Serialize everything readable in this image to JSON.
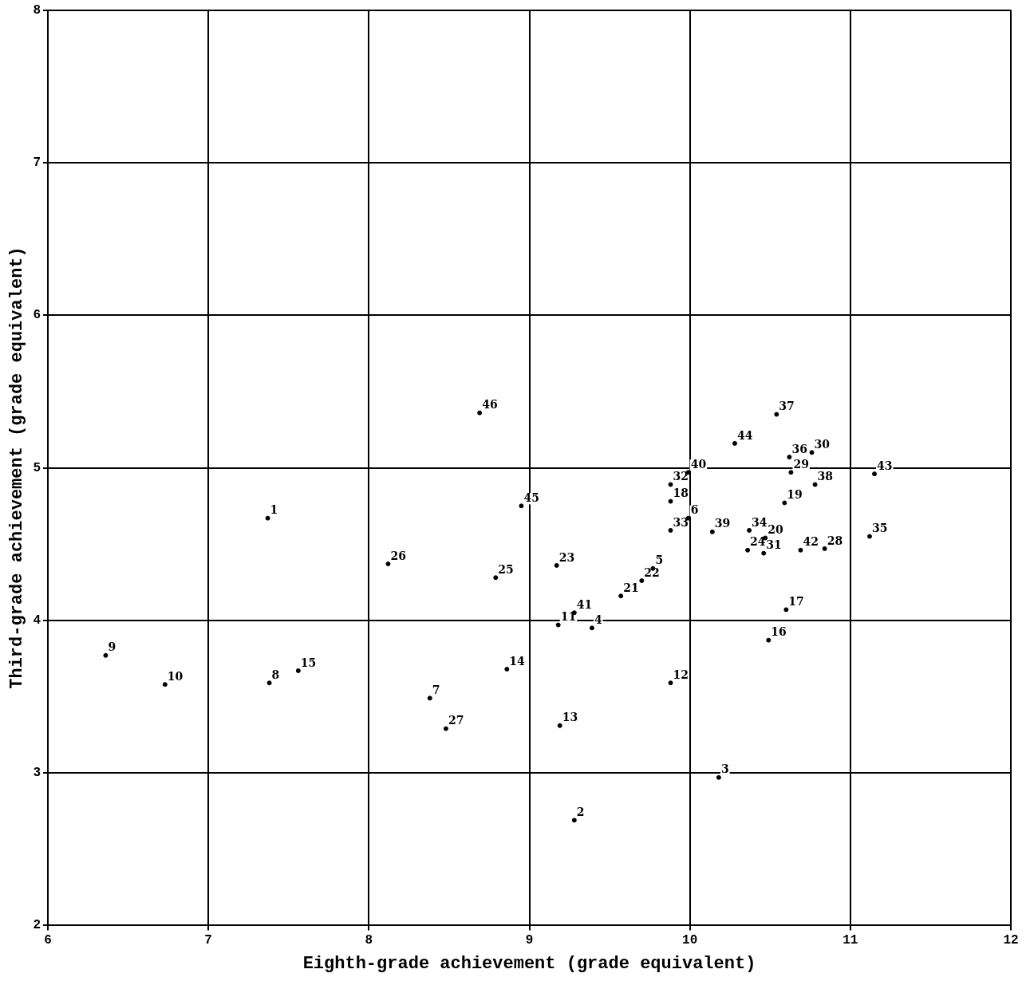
{
  "chart_data": {
    "type": "scatter",
    "xlabel": "Eighth-grade achievement (grade equivalent)",
    "ylabel": "Third-grade achievement (grade equivalent)",
    "xlim": [
      6,
      12
    ],
    "ylim": [
      2,
      8
    ],
    "xticks": [
      6,
      7,
      8,
      9,
      10,
      11,
      12
    ],
    "yticks": [
      2,
      3,
      4,
      5,
      6,
      7,
      8
    ],
    "grid": true,
    "legend": false,
    "marker": "circle",
    "series": [
      {
        "color": "#000000",
        "x": [
          7.37,
          9.28,
          10.18,
          9.39,
          9.77,
          9.99,
          8.38,
          7.38,
          6.36,
          6.73,
          9.18,
          9.88,
          9.19,
          8.86,
          7.56,
          10.49,
          10.6,
          9.88,
          10.59,
          10.47,
          9.57,
          9.7,
          9.17,
          10.36,
          8.79,
          8.12,
          8.48,
          10.84,
          10.63,
          10.76,
          10.46,
          9.88,
          9.88,
          10.37,
          11.12,
          10.62,
          10.54,
          10.78,
          10.14,
          9.99,
          9.28,
          10.69,
          11.15,
          10.28,
          8.95,
          8.69
        ],
        "values": [
          4.67,
          2.69,
          2.97,
          3.95,
          4.34,
          4.67,
          3.49,
          3.59,
          3.77,
          3.58,
          3.97,
          3.59,
          3.31,
          3.68,
          3.67,
          3.87,
          4.07,
          4.78,
          4.77,
          4.54,
          4.16,
          4.26,
          4.36,
          4.46,
          4.28,
          4.37,
          3.29,
          4.47,
          4.97,
          5.1,
          4.44,
          4.89,
          4.59,
          4.59,
          4.55,
          5.07,
          5.35,
          4.89,
          4.58,
          4.97,
          4.05,
          4.46,
          4.96,
          5.16,
          4.75,
          5.36
        ]
      }
    ],
    "annotations": [
      {
        "text": "1",
        "x": 7.37,
        "y": 4.67
      },
      {
        "text": "2",
        "x": 9.28,
        "y": 2.69
      },
      {
        "text": "3",
        "x": 10.18,
        "y": 2.97
      },
      {
        "text": "4",
        "x": 9.39,
        "y": 3.95
      },
      {
        "text": "5",
        "x": 9.77,
        "y": 4.34
      },
      {
        "text": "6",
        "x": 9.99,
        "y": 4.67
      },
      {
        "text": "7",
        "x": 8.38,
        "y": 3.49
      },
      {
        "text": "8",
        "x": 7.38,
        "y": 3.59
      },
      {
        "text": "9",
        "x": 6.36,
        "y": 3.77
      },
      {
        "text": "10",
        "x": 6.73,
        "y": 3.58
      },
      {
        "text": "11",
        "x": 9.18,
        "y": 3.97
      },
      {
        "text": "12",
        "x": 9.88,
        "y": 3.59
      },
      {
        "text": "13",
        "x": 9.19,
        "y": 3.31
      },
      {
        "text": "14",
        "x": 8.86,
        "y": 3.68
      },
      {
        "text": "15",
        "x": 7.56,
        "y": 3.67
      },
      {
        "text": "16",
        "x": 10.49,
        "y": 3.87
      },
      {
        "text": "17",
        "x": 10.6,
        "y": 4.07
      },
      {
        "text": "18",
        "x": 9.88,
        "y": 4.78
      },
      {
        "text": "19",
        "x": 10.59,
        "y": 4.77
      },
      {
        "text": "20",
        "x": 10.47,
        "y": 4.54
      },
      {
        "text": "21",
        "x": 9.57,
        "y": 4.16
      },
      {
        "text": "22",
        "x": 9.7,
        "y": 4.26
      },
      {
        "text": "23",
        "x": 9.17,
        "y": 4.36
      },
      {
        "text": "24",
        "x": 10.36,
        "y": 4.46
      },
      {
        "text": "25",
        "x": 8.79,
        "y": 4.28
      },
      {
        "text": "26",
        "x": 8.12,
        "y": 4.37
      },
      {
        "text": "27",
        "x": 8.48,
        "y": 3.29
      },
      {
        "text": "28",
        "x": 10.84,
        "y": 4.47
      },
      {
        "text": "29",
        "x": 10.63,
        "y": 4.97
      },
      {
        "text": "30",
        "x": 10.76,
        "y": 5.1
      },
      {
        "text": "31",
        "x": 10.46,
        "y": 4.44
      },
      {
        "text": "32",
        "x": 9.88,
        "y": 4.89
      },
      {
        "text": "33",
        "x": 9.88,
        "y": 4.59
      },
      {
        "text": "34",
        "x": 10.37,
        "y": 4.59
      },
      {
        "text": "35",
        "x": 11.12,
        "y": 4.55
      },
      {
        "text": "36",
        "x": 10.62,
        "y": 5.07
      },
      {
        "text": "37",
        "x": 10.54,
        "y": 5.35
      },
      {
        "text": "38",
        "x": 10.78,
        "y": 4.89
      },
      {
        "text": "39",
        "x": 10.14,
        "y": 4.58
      },
      {
        "text": "40",
        "x": 9.99,
        "y": 4.97
      },
      {
        "text": "41",
        "x": 9.28,
        "y": 4.05
      },
      {
        "text": "42",
        "x": 10.69,
        "y": 4.46
      },
      {
        "text": "43",
        "x": 11.15,
        "y": 4.96
      },
      {
        "text": "44",
        "x": 10.28,
        "y": 5.16
      },
      {
        "text": "45",
        "x": 8.95,
        "y": 4.75
      },
      {
        "text": "46",
        "x": 8.69,
        "y": 5.36
      }
    ]
  }
}
